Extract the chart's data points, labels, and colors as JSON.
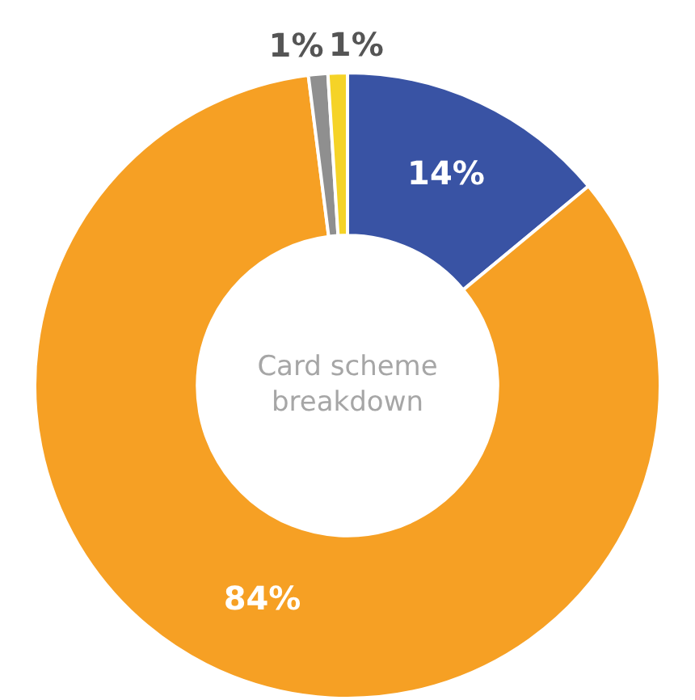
{
  "chart_data": {
    "type": "donut",
    "title": "Card scheme breakdown",
    "categories": [
      null,
      null,
      null,
      null
    ],
    "values": [
      14,
      84,
      1,
      1
    ],
    "colors": [
      "#3953a4",
      "#f6a024",
      "#8f8f8f",
      "#f5d327"
    ],
    "value_labels": [
      "14%",
      "84%",
      "1%",
      "1%"
    ],
    "legend": false
  }
}
